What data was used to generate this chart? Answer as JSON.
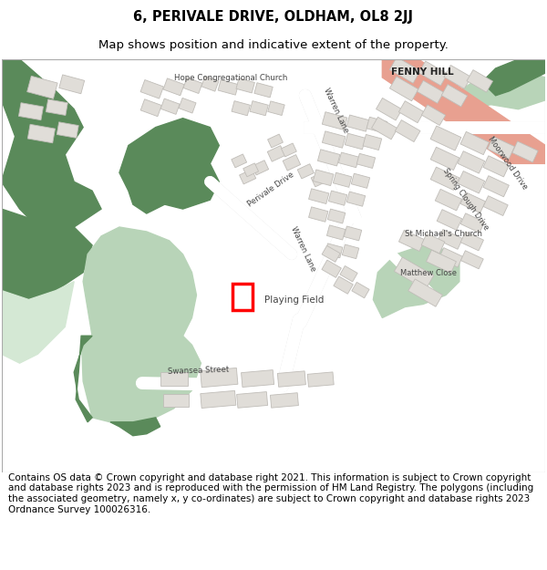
{
  "title_line1": "6, PERIVALE DRIVE, OLDHAM, OL8 2JJ",
  "title_line2": "Map shows position and indicative extent of the property.",
  "footer_text": "Contains OS data © Crown copyright and database right 2021. This information is subject to Crown copyright and database rights 2023 and is reproduced with the permission of HM Land Registry. The polygons (including the associated geometry, namely x, y co-ordinates) are subject to Crown copyright and database rights 2023 Ordnance Survey 100026316.",
  "title_fontsize": 10.5,
  "subtitle_fontsize": 9.5,
  "footer_fontsize": 7.5,
  "fig_bg_color": "#ffffff",
  "map_bg_color": "#ffffff",
  "dark_green": "#5a8a5a",
  "mid_green": "#7aaa7a",
  "light_green": "#b8d4b8",
  "very_light_green": "#d4e8d4",
  "building_fill": "#e0ddd8",
  "building_edge": "#c0bdb8",
  "road_color": "#ffffff",
  "salmon_color": "#e8a090",
  "highlight_color": "#ff0000",
  "label_color": "#444444"
}
